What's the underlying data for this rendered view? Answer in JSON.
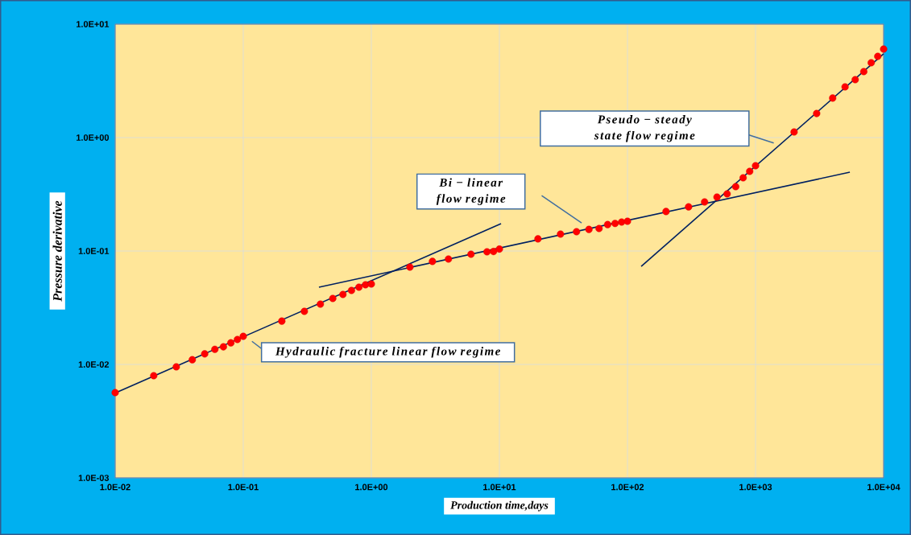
{
  "chart_data": {
    "type": "scatter",
    "xlabel": "Production time,days",
    "ylabel": "Pressure derivative",
    "xlim": [
      0.01,
      10000
    ],
    "ylim": [
      0.001,
      10
    ],
    "log": "xy",
    "grid": true,
    "xticks": [
      {
        "value": 0.01,
        "label": "1.0E-02"
      },
      {
        "value": 0.1,
        "label": "1.0E-01"
      },
      {
        "value": 1,
        "label": "1.0E+00"
      },
      {
        "value": 10,
        "label": "1.0E+01"
      },
      {
        "value": 100,
        "label": "1.0E+02"
      },
      {
        "value": 1000,
        "label": "1.0E+03"
      },
      {
        "value": 10000,
        "label": "1.0E+04"
      }
    ],
    "yticks": [
      {
        "value": 0.001,
        "label": "1.0E-03"
      },
      {
        "value": 0.01,
        "label": "1.0E-02"
      },
      {
        "value": 0.1,
        "label": "1.0E-01"
      },
      {
        "value": 1,
        "label": "1.0E+00"
      },
      {
        "value": 10,
        "label": "1.0E+01"
      }
    ],
    "series": [
      {
        "type": "scatter",
        "marker": "circle",
        "color": "#ff0000",
        "x": [
          0.01,
          0.02,
          0.03,
          0.04,
          0.05,
          0.06,
          0.07,
          0.08,
          0.09,
          0.1,
          0.2,
          0.3,
          0.4,
          0.5,
          0.6,
          0.7,
          0.8,
          0.9,
          1,
          2,
          3,
          4,
          6,
          8,
          9,
          10,
          20,
          30,
          40,
          50,
          60,
          70,
          80,
          90,
          100,
          200,
          300,
          400,
          500,
          600,
          700,
          800,
          900,
          1000,
          2000,
          3000,
          4000,
          5000,
          6000,
          7000,
          8000,
          9000,
          10000
        ],
        "values": [
          0.00565,
          0.00796,
          0.00953,
          0.011,
          0.0124,
          0.0136,
          0.0143,
          0.0155,
          0.0166,
          0.0177,
          0.0241,
          0.0294,
          0.034,
          0.0382,
          0.0414,
          0.0449,
          0.048,
          0.0504,
          0.0512,
          0.0721,
          0.081,
          0.085,
          0.0937,
          0.0984,
          0.099,
          0.104,
          0.128,
          0.141,
          0.148,
          0.155,
          0.158,
          0.171,
          0.175,
          0.18,
          0.183,
          0.223,
          0.245,
          0.271,
          0.299,
          0.319,
          0.369,
          0.442,
          0.504,
          0.565,
          1.12,
          1.63,
          2.23,
          2.8,
          3.24,
          3.82,
          4.57,
          5.2,
          6.03
        ]
      },
      {
        "type": "line",
        "marker": "none",
        "color": "#002060",
        "x": [
          0.01,
          10.3
        ],
        "values": [
          0.0056,
          0.174
        ]
      },
      {
        "type": "line",
        "marker": "none",
        "color": "#002060",
        "x": [
          0.39,
          5450
        ],
        "values": [
          0.048,
          0.495
        ]
      },
      {
        "type": "line",
        "marker": "none",
        "color": "#002060",
        "x": [
          128,
          10000
        ],
        "values": [
          0.0733,
          5.48
        ]
      }
    ],
    "annotations": [
      "Pseudo − steady state flow regime",
      "Bi − linear flow regime",
      "Hydraulic fracture linear flow regime"
    ]
  }
}
